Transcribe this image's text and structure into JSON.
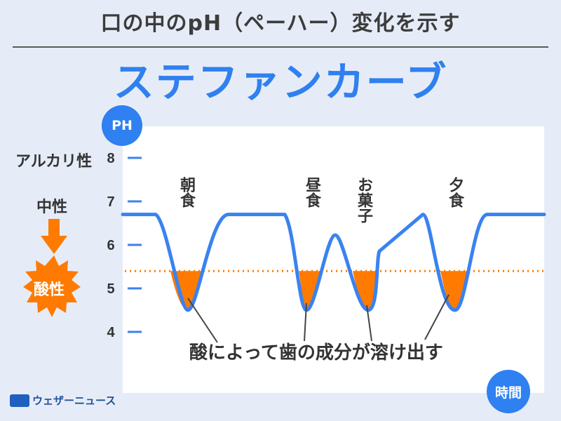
{
  "header": {
    "title": "口の中のpH（ペーハー）変化を示す",
    "subtitle": "ステファンカーブ"
  },
  "badges": {
    "y_axis": "PH",
    "x_axis": "時間"
  },
  "side_labels": {
    "alkaline": "アルカリ性",
    "neutral": "中性",
    "acidic": "酸性"
  },
  "annotation": "酸によって歯の成分が溶け出す",
  "logo_text": "ウェザーニュース",
  "colors": {
    "curve": "#3a82f0",
    "acid_fill": "#ff7a00",
    "threshold": "#ff7a00",
    "title_blue": "#2f80f0"
  },
  "chart_data": {
    "type": "line",
    "y_ticks": [
      8,
      7,
      6,
      5,
      4
    ],
    "ylim": [
      4,
      8
    ],
    "threshold": 5.4,
    "meals": [
      {
        "label": "朝食",
        "ph_min": 4.5
      },
      {
        "label": "昼食",
        "ph_min": 4.5
      },
      {
        "label": "お菓子",
        "ph_min": 4.5
      },
      {
        "label": "夕食",
        "ph_min": 4.5
      }
    ],
    "baseline_ph": 6.7,
    "grid": false
  }
}
